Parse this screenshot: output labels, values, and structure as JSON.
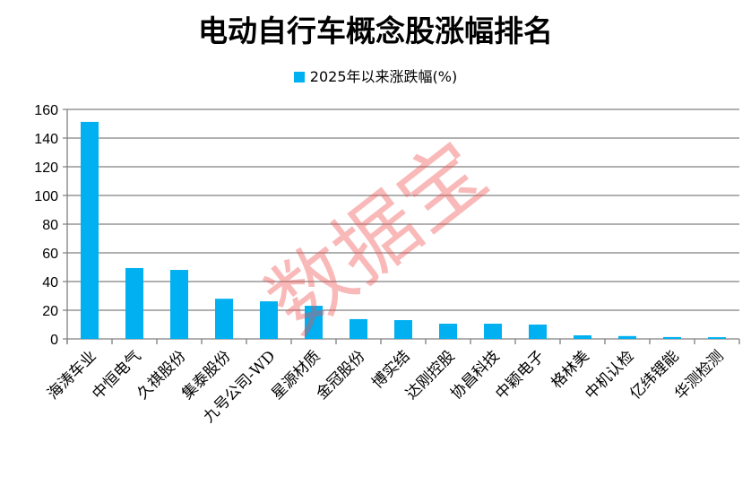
{
  "chart_data": {
    "type": "bar",
    "title": "电动自行车概念股涨幅排名",
    "categories": [
      "海涛车业",
      "中恒电气",
      "久祺股份",
      "集泰股份",
      "九号公司-WD",
      "星源材质",
      "金冠股份",
      "博实结",
      "达刚控股",
      "协昌科技",
      "中颖电子",
      "格林美",
      "中机认检",
      "亿纬锂能",
      "华测检测"
    ],
    "series": [
      {
        "name": "2025年以来涨跌幅(%)",
        "values": [
          151.3,
          49.4,
          48.1,
          28.0,
          26.2,
          23.1,
          13.8,
          13.1,
          10.6,
          10.6,
          10.0,
          2.5,
          2.0,
          1.3,
          1.2
        ],
        "color": "#00b0f0"
      }
    ],
    "ylim": [
      0,
      160
    ],
    "yticks": [
      0,
      20,
      40,
      60,
      80,
      100,
      120,
      140,
      160
    ],
    "grid": true,
    "legend": "top-center",
    "watermark": "数据宝"
  }
}
